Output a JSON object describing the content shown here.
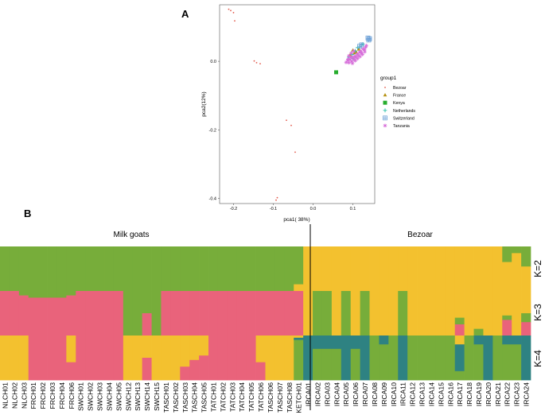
{
  "panel_a_label": "A",
  "panel_b_label": "B",
  "colors": {
    "green": "#77ad3a",
    "pink": "#e9637b",
    "yellow": "#f3c12f",
    "teal": "#2e8282",
    "bezoar": "#e2584a",
    "france": "#b69112",
    "kenya": "#28ad2e",
    "netherlands": "#27c0a8",
    "switzerland": "#6a9fd6",
    "tanzania": "#d66cd9"
  },
  "chart_data": [
    {
      "type": "scatter",
      "title": "",
      "xlabel": "pca1( 38%)",
      "ylabel": "pca2(12%)",
      "xlim": [
        -0.235,
        0.155
      ],
      "ylim": [
        -0.415,
        0.165
      ],
      "x_ticks": [
        -0.2,
        -0.1,
        0.0,
        0.1
      ],
      "x_tick_labels": [
        "-0.2",
        "-0.1",
        "0.0",
        "0.1"
      ],
      "y_ticks": [
        0.0,
        -0.2,
        -0.4
      ],
      "y_tick_labels": [
        "0.0",
        "-0.2",
        "-0.4"
      ],
      "legend_title": "group1",
      "legend_position": "right",
      "series": [
        {
          "name": "Bezoar",
          "marker": "dot",
          "color": "bezoar",
          "points": [
            [
              -0.212,
              0.152
            ],
            [
              -0.207,
              0.148
            ],
            [
              -0.2,
              0.142
            ],
            [
              -0.197,
              0.118
            ],
            [
              -0.148,
              0.001
            ],
            [
              -0.142,
              -0.004
            ],
            [
              -0.133,
              -0.007
            ],
            [
              -0.067,
              -0.172
            ],
            [
              -0.055,
              -0.187
            ],
            [
              -0.045,
              -0.265
            ],
            [
              -0.09,
              -0.398
            ],
            [
              -0.093,
              -0.405
            ]
          ]
        },
        {
          "name": "France",
          "marker": "triangle",
          "color": "france",
          "points": [
            [
              0.093,
              0.018
            ],
            [
              0.1,
              0.032
            ],
            [
              0.108,
              0.027
            ],
            [
              0.115,
              0.035
            ],
            [
              0.104,
              0.024
            ]
          ]
        },
        {
          "name": "Kenya",
          "marker": "square",
          "color": "kenya",
          "points": [
            [
              0.058,
              -0.032
            ]
          ]
        },
        {
          "name": "Netherlands",
          "marker": "plus",
          "color": "netherlands",
          "points": [
            [
              0.09,
              0.012
            ],
            [
              0.098,
              0.02
            ],
            [
              0.106,
              0.03
            ],
            [
              0.112,
              0.04
            ],
            [
              0.118,
              0.044
            ],
            [
              0.1,
              0.008
            ],
            [
              0.125,
              0.05
            ]
          ]
        },
        {
          "name": "Switzerland",
          "marker": "boxplus",
          "color": "switzerland",
          "points": [
            [
              0.138,
              0.068
            ],
            [
              0.142,
              0.066
            ],
            [
              0.14,
              0.062
            ],
            [
              0.117,
              0.044
            ],
            [
              0.122,
              0.048
            ]
          ]
        },
        {
          "name": "Tanzania",
          "marker": "star",
          "color": "tanzania",
          "points": [
            [
              0.083,
              -0.003
            ],
            [
              0.087,
              0.003
            ],
            [
              0.09,
              -0.004
            ],
            [
              0.093,
              0.005
            ],
            [
              0.097,
              0.0
            ],
            [
              0.1,
              0.011
            ],
            [
              0.103,
              0.006
            ],
            [
              0.105,
              0.015
            ],
            [
              0.108,
              0.012
            ],
            [
              0.111,
              0.021
            ],
            [
              0.114,
              0.017
            ],
            [
              0.117,
              0.026
            ],
            [
              0.12,
              0.03
            ],
            [
              0.122,
              0.024
            ],
            [
              0.126,
              0.036
            ],
            [
              0.129,
              0.034
            ],
            [
              0.132,
              0.041
            ],
            [
              0.095,
              0.012
            ],
            [
              0.099,
              -0.006
            ],
            [
              0.088,
              0.006
            ],
            [
              0.106,
              0.002
            ],
            [
              0.112,
              0.008
            ],
            [
              0.118,
              0.014
            ],
            [
              0.124,
              0.02
            ],
            [
              0.13,
              0.028
            ],
            [
              0.134,
              0.046
            ],
            [
              0.09,
              0.016
            ],
            [
              0.096,
              0.024
            ],
            [
              0.102,
              0.03
            ]
          ]
        }
      ]
    },
    {
      "type": "bar",
      "subtype": "stacked-admixture",
      "group_labels": [
        "Milk goats",
        "Bezoar"
      ],
      "k_labels": [
        "K=2",
        "K=3",
        "K=4"
      ],
      "component_colors": {
        "K=2": [
          "green",
          "yellow"
        ],
        "K=3": [
          "yellow",
          "green",
          "pink"
        ],
        "K=4": [
          "yellow",
          "teal",
          "green",
          "pink"
        ]
      },
      "samples": [
        "NLCH01",
        "NLCH02",
        "NLCH03",
        "FRCH01",
        "FRCH02",
        "FRCH03",
        "FRCH04",
        "FRCH06",
        "SWCH01",
        "SWCH02",
        "SWCH03",
        "SWCH04",
        "SWCH05",
        "SWCH12",
        "SWCH13",
        "SWCH14",
        "SWCH15",
        "TASCH01",
        "TASCH02",
        "TASCH03",
        "TASCH04",
        "TASCH05",
        "TATCH01",
        "TATCH02",
        "TATCH03",
        "TATCH04",
        "TATCH05",
        "TATCH06",
        "TASCH06",
        "TASCH07",
        "TASCH08",
        "KETCH01",
        "IRCA01",
        "IRCA02",
        "IRCA03",
        "IRCA04",
        "IRCA05",
        "IRCA06",
        "IRCA07",
        "IRCA08",
        "IRCA09",
        "IRCA10",
        "IRCA11",
        "IRCA12",
        "IRCA13",
        "IRCA14",
        "IRCA15",
        "IRCA16",
        "IRCA17",
        "IRCA18",
        "IRCA19",
        "IRCA20",
        "IRCA21",
        "IRCA22",
        "IRCA23",
        "IRCA24"
      ],
      "K2": [
        [
          1,
          0
        ],
        [
          1,
          0
        ],
        [
          1,
          0
        ],
        [
          1,
          0
        ],
        [
          1,
          0
        ],
        [
          1,
          0
        ],
        [
          1,
          0
        ],
        [
          1,
          0
        ],
        [
          1,
          0
        ],
        [
          1,
          0
        ],
        [
          1,
          0
        ],
        [
          1,
          0
        ],
        [
          1,
          0
        ],
        [
          1,
          0
        ],
        [
          1,
          0
        ],
        [
          1,
          0
        ],
        [
          1,
          0
        ],
        [
          1,
          0
        ],
        [
          1,
          0
        ],
        [
          1,
          0
        ],
        [
          1,
          0
        ],
        [
          1,
          0
        ],
        [
          1,
          0
        ],
        [
          1,
          0
        ],
        [
          1,
          0
        ],
        [
          1,
          0
        ],
        [
          1,
          0
        ],
        [
          1,
          0
        ],
        [
          1,
          0
        ],
        [
          1,
          0
        ],
        [
          1,
          0
        ],
        [
          0.85,
          0.15
        ],
        [
          0,
          1
        ],
        [
          0,
          1
        ],
        [
          0,
          1
        ],
        [
          0,
          1
        ],
        [
          0,
          1
        ],
        [
          0,
          1
        ],
        [
          0,
          1
        ],
        [
          0,
          1
        ],
        [
          0,
          1
        ],
        [
          0,
          1
        ],
        [
          0,
          1
        ],
        [
          0,
          1
        ],
        [
          0,
          1
        ],
        [
          0,
          1
        ],
        [
          0,
          1
        ],
        [
          0,
          1
        ],
        [
          0,
          1
        ],
        [
          0,
          1
        ],
        [
          0,
          1
        ],
        [
          0,
          1
        ],
        [
          0,
          1
        ],
        [
          0.35,
          0.65
        ],
        [
          0.15,
          0.85
        ],
        [
          0.45,
          0.55
        ]
      ],
      "K3": [
        [
          0,
          0,
          1
        ],
        [
          0,
          0,
          1
        ],
        [
          0,
          0.1,
          0.9
        ],
        [
          0,
          0.15,
          0.85
        ],
        [
          0,
          0.15,
          0.85
        ],
        [
          0,
          0.15,
          0.85
        ],
        [
          0,
          0.15,
          0.85
        ],
        [
          0,
          0.1,
          0.9
        ],
        [
          0,
          0,
          1
        ],
        [
          0,
          0,
          1
        ],
        [
          0,
          0,
          1
        ],
        [
          0,
          0,
          1
        ],
        [
          0,
          0,
          1
        ],
        [
          0,
          1,
          0
        ],
        [
          0,
          1,
          0
        ],
        [
          0,
          0.5,
          0.5
        ],
        [
          0,
          1,
          0
        ],
        [
          0,
          0,
          1
        ],
        [
          0,
          0,
          1
        ],
        [
          0,
          0,
          1
        ],
        [
          0,
          0,
          1
        ],
        [
          0,
          0,
          1
        ],
        [
          0,
          0,
          1
        ],
        [
          0,
          0,
          1
        ],
        [
          0,
          0,
          1
        ],
        [
          0,
          0,
          1
        ],
        [
          0,
          0,
          1
        ],
        [
          0,
          0,
          1
        ],
        [
          0,
          0,
          1
        ],
        [
          0,
          0,
          1
        ],
        [
          0,
          0,
          1
        ],
        [
          0,
          0,
          1
        ],
        [
          1,
          0,
          0
        ],
        [
          0,
          1,
          0
        ],
        [
          0,
          1,
          0
        ],
        [
          1,
          0,
          0
        ],
        [
          0,
          1,
          0
        ],
        [
          1,
          0,
          0
        ],
        [
          0,
          1,
          0
        ],
        [
          1,
          0,
          0
        ],
        [
          1,
          0,
          0
        ],
        [
          1,
          0,
          0
        ],
        [
          0,
          1,
          0
        ],
        [
          1,
          0,
          0
        ],
        [
          1,
          0,
          0
        ],
        [
          1,
          0,
          0
        ],
        [
          1,
          0,
          0
        ],
        [
          1,
          0,
          0
        ],
        [
          0.6,
          0.15,
          0.25
        ],
        [
          1,
          0,
          0
        ],
        [
          0.85,
          0.15,
          0
        ],
        [
          1,
          0,
          0
        ],
        [
          1,
          0,
          0
        ],
        [
          0.55,
          0.1,
          0.35
        ],
        [
          1,
          0,
          0
        ],
        [
          0.5,
          0.2,
          0.3
        ]
      ],
      "K4": [
        [
          1,
          0,
          0,
          0
        ],
        [
          1,
          0,
          0,
          0
        ],
        [
          1,
          0,
          0,
          0
        ],
        [
          0,
          0,
          0,
          1
        ],
        [
          0,
          0,
          0,
          1
        ],
        [
          0,
          0,
          0,
          1
        ],
        [
          0,
          0,
          0,
          1
        ],
        [
          0.6,
          0,
          0,
          0.4
        ],
        [
          0,
          0,
          0,
          1
        ],
        [
          0,
          0,
          0,
          1
        ],
        [
          0,
          0,
          0,
          1
        ],
        [
          0,
          0,
          0,
          1
        ],
        [
          0,
          0,
          0,
          1
        ],
        [
          1,
          0,
          0,
          0
        ],
        [
          1,
          0,
          0,
          0
        ],
        [
          0.5,
          0,
          0,
          0.5
        ],
        [
          1,
          0,
          0,
          0
        ],
        [
          1,
          0,
          0,
          0
        ],
        [
          1,
          0,
          0,
          0
        ],
        [
          0.7,
          0,
          0,
          0.3
        ],
        [
          0.55,
          0,
          0,
          0.45
        ],
        [
          0.45,
          0,
          0,
          0.55
        ],
        [
          0,
          0,
          0,
          1
        ],
        [
          0,
          0,
          0,
          1
        ],
        [
          0,
          0,
          0,
          1
        ],
        [
          0,
          0,
          0,
          1
        ],
        [
          0,
          0,
          0,
          1
        ],
        [
          0.6,
          0,
          0,
          0.4
        ],
        [
          1,
          0,
          0,
          0
        ],
        [
          1,
          0,
          0,
          0
        ],
        [
          1,
          0,
          0,
          0
        ],
        [
          0.05,
          0.05,
          0.9,
          0
        ],
        [
          0,
          1,
          0,
          0
        ],
        [
          0,
          0.3,
          0.7,
          0
        ],
        [
          0,
          0.3,
          0.7,
          0
        ],
        [
          0,
          0.3,
          0.7,
          0
        ],
        [
          0,
          1,
          0,
          0
        ],
        [
          0,
          0.3,
          0.7,
          0
        ],
        [
          0,
          1,
          0,
          0
        ],
        [
          0,
          0,
          1,
          0
        ],
        [
          0,
          0.2,
          0.8,
          0
        ],
        [
          0,
          0,
          1,
          0
        ],
        [
          0,
          1,
          0,
          0
        ],
        [
          0,
          0,
          1,
          0
        ],
        [
          0,
          0,
          1,
          0
        ],
        [
          0,
          0,
          1,
          0
        ],
        [
          0,
          0,
          1,
          0
        ],
        [
          0,
          0,
          1,
          0
        ],
        [
          0.2,
          0.6,
          0.2,
          0
        ],
        [
          0,
          0,
          1,
          0
        ],
        [
          0,
          0.2,
          0.8,
          0
        ],
        [
          0,
          1,
          0,
          0
        ],
        [
          0,
          0,
          1,
          0
        ],
        [
          0,
          0.2,
          0.8,
          0
        ],
        [
          0,
          0.2,
          0.8,
          0
        ],
        [
          0,
          1,
          0,
          0
        ]
      ]
    }
  ]
}
